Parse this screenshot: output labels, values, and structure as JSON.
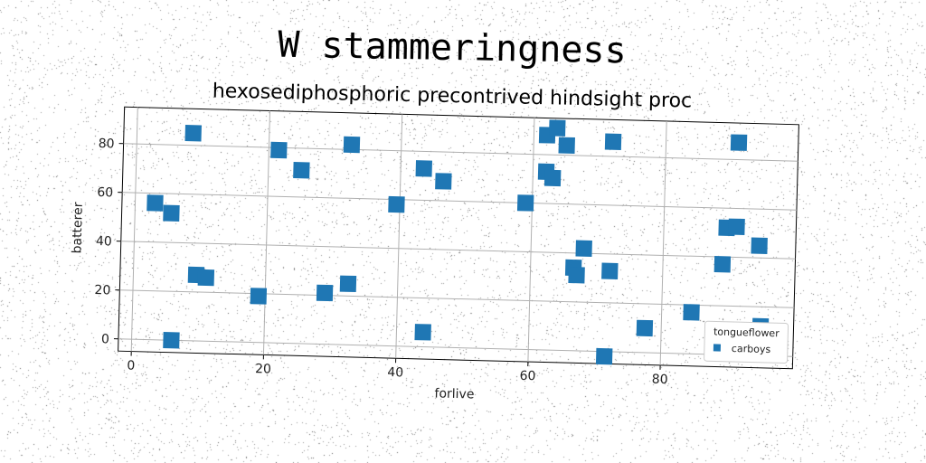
{
  "title": "W stammeringness",
  "subtitle": "hexosediphosphoric precontrived hindsight proc",
  "chart_data": {
    "type": "scatter",
    "xlabel": "forlive",
    "ylabel": "batterer",
    "xlim": [
      -2,
      100
    ],
    "ylim": [
      -5,
      95
    ],
    "xticks": [
      0,
      20,
      40,
      60,
      80
    ],
    "yticks": [
      0,
      20,
      40,
      60,
      80
    ],
    "grid": true,
    "legend": {
      "title": "tongueflower",
      "position": "bottom-right"
    },
    "series": [
      {
        "name": "carboys",
        "color": "#1f77b4",
        "marker": "square",
        "points": [
          [
            3,
            56
          ],
          [
            5.5,
            52
          ],
          [
            8.5,
            85
          ],
          [
            6,
            0
          ],
          [
            9.5,
            27
          ],
          [
            11,
            26
          ],
          [
            19,
            19
          ],
          [
            21.5,
            79
          ],
          [
            25,
            71
          ],
          [
            29,
            21
          ],
          [
            32.5,
            82
          ],
          [
            32.5,
            25
          ],
          [
            39.5,
            58
          ],
          [
            43.5,
            73
          ],
          [
            44,
            6
          ],
          [
            46.5,
            68
          ],
          [
            59,
            60
          ],
          [
            62,
            88
          ],
          [
            63.5,
            91
          ],
          [
            65,
            84
          ],
          [
            62,
            73
          ],
          [
            63,
            70.5
          ],
          [
            68,
            42
          ],
          [
            66.5,
            34
          ],
          [
            67,
            31
          ],
          [
            72,
            86
          ],
          [
            72,
            33
          ],
          [
            71.5,
            -2
          ],
          [
            77.5,
            10
          ],
          [
            84.5,
            17
          ],
          [
            89,
            37
          ],
          [
            89.5,
            52
          ],
          [
            91,
            52.5
          ],
          [
            91,
            87
          ],
          [
            94.5,
            45
          ],
          [
            95,
            12
          ]
        ]
      }
    ]
  }
}
